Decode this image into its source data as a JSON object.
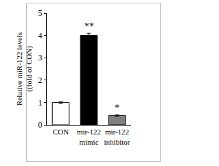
{
  "chart_data": {
    "type": "bar",
    "y_label": "Relative miR-122 levels\n((fold of CON)",
    "categories": [
      "CON",
      "mir-122\nmimic",
      "mir-122\ninhibitor"
    ],
    "values": [
      1.0,
      4.0,
      0.42
    ],
    "errors": [
      0.03,
      0.1,
      0.03
    ],
    "colors": [
      "#ffffff",
      "#000000",
      "#808080"
    ],
    "annotations": [
      {
        "category": "mir-122\nmimic",
        "text": "**"
      },
      {
        "category": "mir-122\ninhibitor",
        "text": "*"
      }
    ],
    "ylim": [
      0,
      5
    ],
    "yticks": [
      0,
      1,
      2,
      3,
      4,
      5
    ],
    "grid": false
  }
}
